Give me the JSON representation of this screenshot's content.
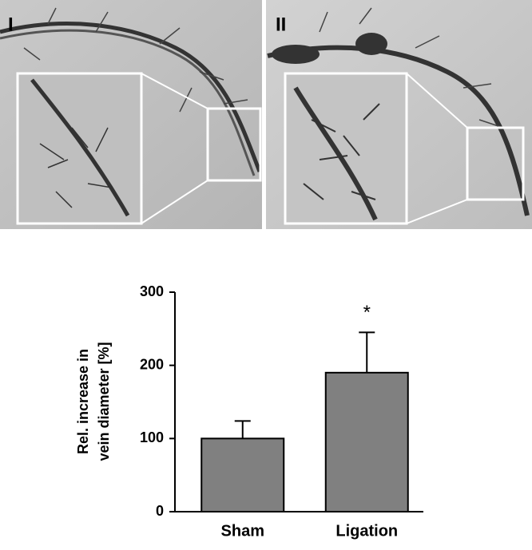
{
  "panels": [
    {
      "label": "I"
    },
    {
      "label": "II"
    }
  ],
  "chart_data": {
    "type": "bar",
    "ylabel_lines": [
      "Rel. increase in",
      "vein diameter [%]"
    ],
    "categories": [
      "Sham",
      "Ligation"
    ],
    "values": [
      100,
      190
    ],
    "errors": [
      24,
      55
    ],
    "annotation": "*",
    "color": "#808080",
    "ylim": [
      0,
      300
    ],
    "yticks": [
      0,
      100,
      200,
      300
    ]
  }
}
